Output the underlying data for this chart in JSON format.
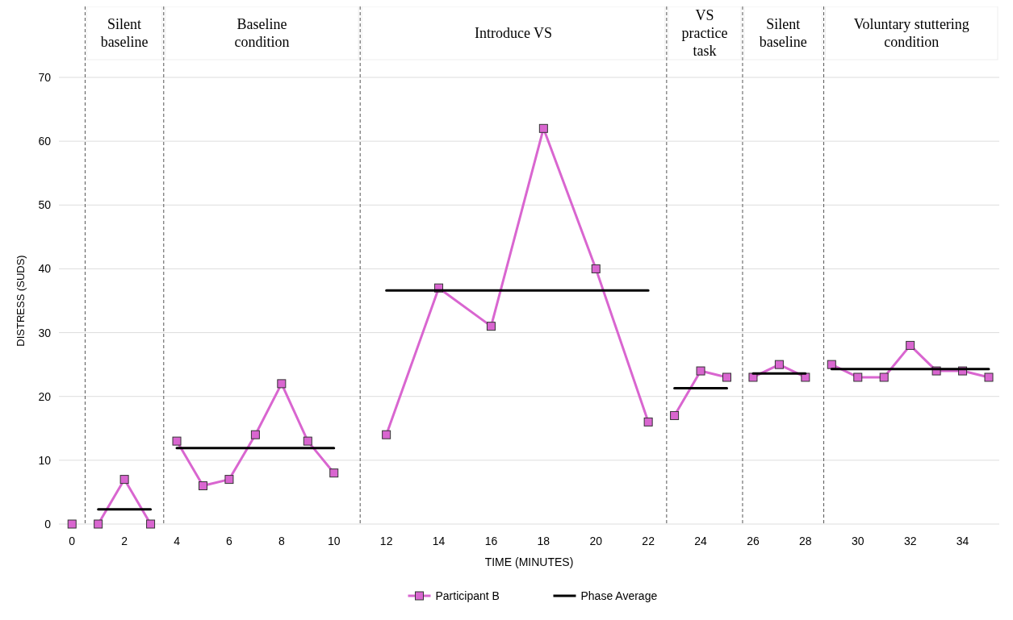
{
  "chart_data": {
    "type": "line",
    "xlabel": "TIME (MINUTES)",
    "ylabel": "DISTRESS (SUDS)",
    "xlim": [
      -0.5,
      35.4
    ],
    "xticks": [
      0,
      2,
      4,
      6,
      8,
      10,
      12,
      14,
      16,
      18,
      20,
      22,
      24,
      26,
      28,
      30,
      32,
      34
    ],
    "ylim": [
      0,
      70
    ],
    "yticks": [
      0,
      10,
      20,
      30,
      40,
      50,
      60,
      70
    ],
    "grid": "y",
    "legend": "bottom",
    "series": [
      {
        "name": "Participant B",
        "color": "#d966d0",
        "marker": "square",
        "x": [
          0,
          0.5,
          1,
          2,
          3,
          3.5,
          4,
          5,
          6,
          7,
          8,
          9,
          10,
          11,
          12,
          14,
          16,
          18,
          20,
          22,
          22.7,
          23,
          24,
          25,
          25.6,
          26,
          27,
          28,
          28.7,
          29,
          30,
          31,
          32,
          33,
          34,
          35
        ],
        "values": [
          0,
          null,
          0,
          7,
          0,
          null,
          13,
          6,
          7,
          14,
          22,
          13,
          8,
          null,
          14,
          37,
          31,
          62,
          40,
          16,
          null,
          17,
          24,
          23,
          null,
          23,
          25,
          23,
          null,
          25,
          23,
          23,
          28,
          24,
          24,
          23
        ]
      },
      {
        "name": "Phase Average",
        "color": "#000000",
        "marker": "none",
        "x": [
          1,
          3,
          3.5,
          4,
          10,
          11,
          12,
          22,
          22.7,
          23,
          25,
          25.6,
          26,
          28,
          28.7,
          29,
          35
        ],
        "values": [
          2.3,
          2.3,
          null,
          11.9,
          11.9,
          null,
          36.6,
          36.6,
          null,
          21.3,
          21.3,
          null,
          23.6,
          23.6,
          null,
          24.3,
          24.3
        ]
      }
    ],
    "ref_lines": [
      {
        "axis": "x",
        "value": 0.5,
        "color": "#555555",
        "line_style": "dashed"
      },
      {
        "axis": "x",
        "value": 3.5,
        "color": "#555555",
        "line_style": "dashed"
      },
      {
        "axis": "x",
        "value": 11,
        "color": "#555555",
        "line_style": "dashed"
      },
      {
        "axis": "x",
        "value": 22.7,
        "color": "#555555",
        "line_style": "dashed"
      },
      {
        "axis": "x",
        "value": 25.6,
        "color": "#555555",
        "line_style": "dashed"
      },
      {
        "axis": "x",
        "value": 28.7,
        "color": "#555555",
        "line_style": "dashed"
      }
    ],
    "annotations": [
      "Silent\nbaseline",
      "Baseline\ncondition",
      "Introduce VS",
      "VS\npractice\ntask",
      "Silent\nbaseline",
      "Voluntary stuttering\ncondition"
    ]
  }
}
